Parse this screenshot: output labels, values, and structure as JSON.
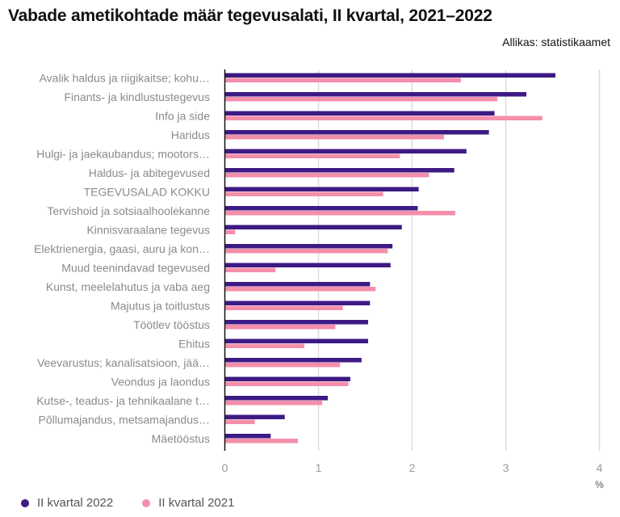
{
  "chart_data": {
    "type": "bar",
    "orientation": "horizontal",
    "title": "Vabade ametikohtade määr tegevusalati, II kvartal, 2021–2022",
    "source": "Allikas: statistikaamet",
    "xlabel": "%",
    "ylabel": "",
    "xlim": [
      0,
      4
    ],
    "xticks": [
      0,
      1,
      2,
      3,
      4
    ],
    "grid": true,
    "legend_position": "bottom-left",
    "categories": [
      "Avalik haldus ja riigikaitse; kohu…",
      "Finants- ja kindlustustegevus",
      "Info ja side",
      "Haridus",
      "Hulgi- ja jaekaubandus; mootors…",
      "Haldus- ja abitegevused",
      "TEGEVUSALAD KOKKU",
      "Tervishoid ja sotsiaalhoolekanne",
      "Kinnisvaraalane tegevus",
      "Elektrienergia, gaasi, auru ja kon…",
      "Muud teenindavad tegevused",
      "Kunst, meelelahutus ja vaba aeg",
      "Majutus ja toitlustus",
      "Töötlev tööstus",
      "Ehitus",
      "Veevarustus; kanalisatsioon, jää…",
      "Veondus ja laondus",
      "Kutse-, teadus- ja tehnikaalane t…",
      "Põllumajandus, metsamajandus…",
      "Mäetööstus"
    ],
    "series": [
      {
        "name": "II kvartal 2022",
        "color": "#3d1a84",
        "values": [
          3.53,
          3.22,
          2.88,
          2.82,
          2.58,
          2.45,
          2.07,
          2.06,
          1.89,
          1.79,
          1.77,
          1.55,
          1.55,
          1.53,
          1.53,
          1.46,
          1.34,
          1.1,
          0.64,
          0.49
        ]
      },
      {
        "name": "II kvartal 2021",
        "color": "#f38fab",
        "values": [
          2.52,
          2.91,
          3.39,
          2.34,
          1.87,
          2.18,
          1.69,
          2.46,
          0.11,
          1.74,
          0.54,
          1.61,
          1.26,
          1.18,
          0.85,
          1.23,
          1.32,
          1.04,
          0.32,
          0.78
        ]
      }
    ]
  }
}
